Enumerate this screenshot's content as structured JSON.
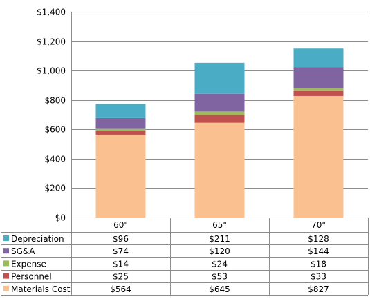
{
  "chart_data": {
    "type": "bar",
    "stacked": true,
    "categories": [
      "60\"",
      "65\"",
      "70\""
    ],
    "series": [
      {
        "name": "Materials Cost",
        "color": "#FAC090",
        "values": [
          564,
          645,
          827
        ],
        "labels": [
          "$564",
          "$645",
          "$827"
        ]
      },
      {
        "name": "Personnel",
        "color": "#C0504D",
        "values": [
          25,
          53,
          33
        ],
        "labels": [
          "$25",
          "$53",
          "$33"
        ]
      },
      {
        "name": "Expense",
        "color": "#9BBB59",
        "values": [
          14,
          24,
          18
        ],
        "labels": [
          "$14",
          "$24",
          "$18"
        ]
      },
      {
        "name": "SG&A",
        "color": "#8064A2",
        "values": [
          74,
          120,
          144
        ],
        "labels": [
          "$74",
          "$120",
          "$144"
        ]
      },
      {
        "name": "Depreciation",
        "color": "#4BACC6",
        "values": [
          96,
          211,
          128
        ],
        "labels": [
          "$96",
          "$211",
          "$128"
        ]
      }
    ],
    "table_row_order": [
      "Depreciation",
      "SG&A",
      "Expense",
      "Personnel",
      "Materials Cost"
    ],
    "ylim": [
      0,
      1400
    ],
    "yticks": [
      0,
      200,
      400,
      600,
      800,
      1000,
      1200,
      1400
    ],
    "ytick_labels": [
      "$0",
      "$200",
      "$400",
      "$600",
      "$800",
      "$1,000",
      "$1,200",
      "$1,400"
    ],
    "grid": true,
    "legend": "data-table"
  }
}
